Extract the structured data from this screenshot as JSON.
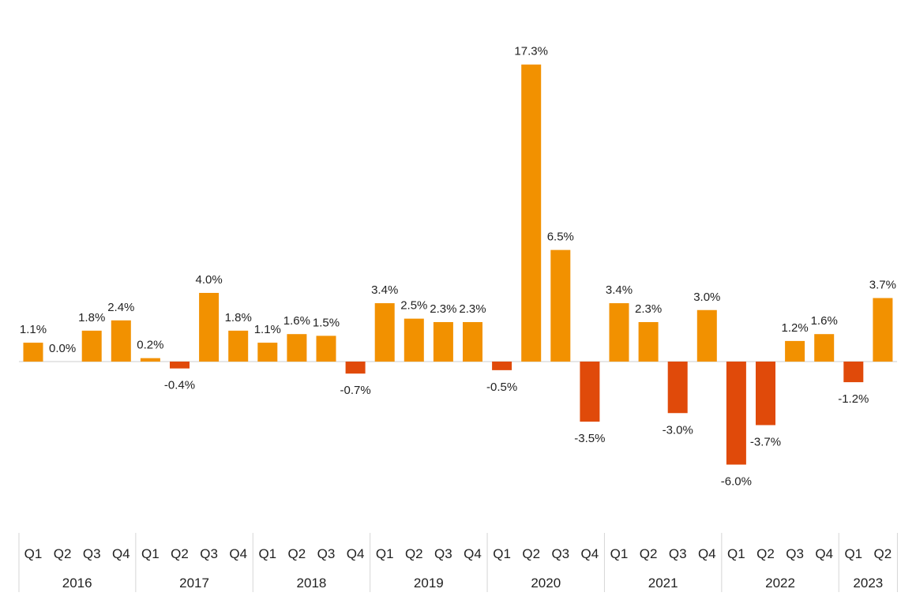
{
  "chart_data": {
    "type": "bar",
    "title": "",
    "xlabel": "",
    "ylabel": "",
    "ylim": [
      -7,
      18
    ],
    "grid": false,
    "legend": "none",
    "colors": {
      "positive": "#F29100",
      "negative": "#E04A0A",
      "zero_line": "#cccccc",
      "separator": "#d6d6d6"
    },
    "groups": [
      {
        "year": "2016",
        "quarters": [
          "Q1",
          "Q2",
          "Q3",
          "Q4"
        ],
        "values": [
          1.1,
          0.0,
          1.8,
          2.4
        ],
        "labels": [
          "1.1%",
          "0.0%",
          "1.8%",
          "2.4%"
        ]
      },
      {
        "year": "2017",
        "quarters": [
          "Q1",
          "Q2",
          "Q3",
          "Q4"
        ],
        "values": [
          0.2,
          -0.4,
          4.0,
          1.8
        ],
        "labels": [
          "0.2%",
          "-0.4%",
          "4.0%",
          "1.8%"
        ]
      },
      {
        "year": "2018",
        "quarters": [
          "Q1",
          "Q2",
          "Q3",
          "Q4"
        ],
        "values": [
          1.1,
          1.6,
          1.5,
          -0.7
        ],
        "labels": [
          "1.1%",
          "1.6%",
          "1.5%",
          "-0.7%"
        ]
      },
      {
        "year": "2019",
        "quarters": [
          "Q1",
          "Q2",
          "Q3",
          "Q4"
        ],
        "values": [
          3.4,
          2.5,
          2.3,
          2.3
        ],
        "labels": [
          "3.4%",
          "2.5%",
          "2.3%",
          "2.3%"
        ]
      },
      {
        "year": "2020",
        "quarters": [
          "Q1",
          "Q2",
          "Q3",
          "Q4"
        ],
        "values": [
          -0.5,
          17.3,
          6.5,
          -3.5
        ],
        "labels": [
          "-0.5%",
          "17.3%",
          "6.5%",
          "-3.5%"
        ]
      },
      {
        "year": "2021",
        "quarters": [
          "Q1",
          "Q2",
          "Q3",
          "Q4"
        ],
        "values": [
          3.4,
          2.3,
          -3.0,
          3.0
        ],
        "labels": [
          "3.4%",
          "2.3%",
          "-3.0%",
          "3.0%"
        ]
      },
      {
        "year": "2022",
        "quarters": [
          "Q1",
          "Q2",
          "Q3",
          "Q4"
        ],
        "values": [
          -6.0,
          -3.7,
          1.2,
          1.6
        ],
        "labels": [
          "-6.0%",
          "-3.7%",
          "1.2%",
          "1.6%"
        ]
      },
      {
        "year": "2023",
        "quarters": [
          "Q1",
          "Q2"
        ],
        "values": [
          -1.2,
          3.7
        ],
        "labels": [
          "-1.2%",
          "3.7%"
        ]
      }
    ]
  }
}
